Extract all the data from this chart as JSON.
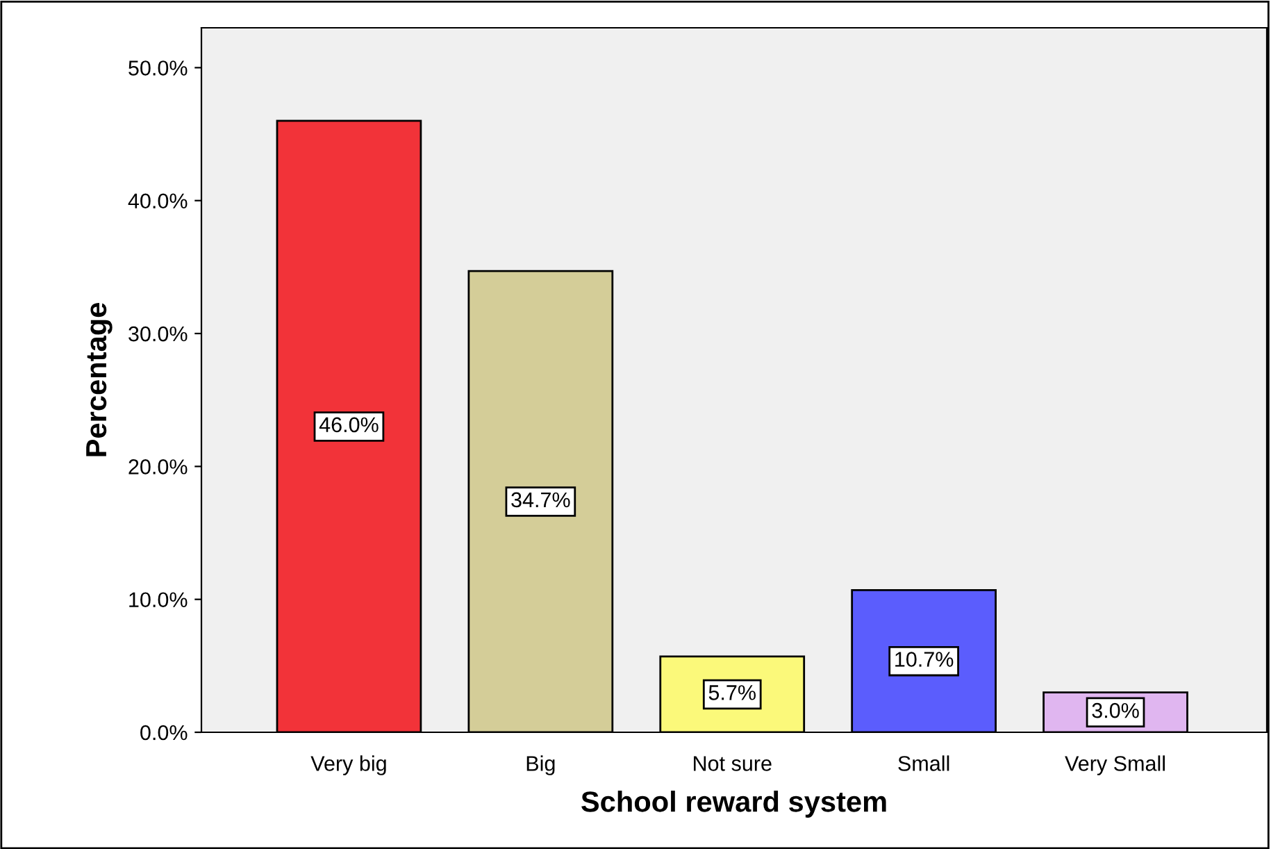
{
  "chart_data": {
    "type": "bar",
    "xlabel": "School reward system",
    "ylabel": "Percentage",
    "categories": [
      "Very big",
      "Big",
      "Not sure",
      "Small",
      "Very Small"
    ],
    "values": [
      46.0,
      34.7,
      5.7,
      10.7,
      3.0
    ],
    "colors": [
      "#f23339",
      "#d4cd98",
      "#fbf97a",
      "#5b5dfd",
      "#e0b6f0"
    ],
    "value_labels": [
      "46.0%",
      "34.7%",
      "5.7%",
      "10.7%",
      "3.0%"
    ],
    "ylim": [
      0,
      53
    ],
    "yticks": [
      {
        "value": 0,
        "label": "0.0%"
      },
      {
        "value": 10,
        "label": "10.0%"
      },
      {
        "value": 20,
        "label": "20.0%"
      },
      {
        "value": 30,
        "label": "30.0%"
      },
      {
        "value": 40,
        "label": "40.0%"
      },
      {
        "value": 50,
        "label": "50.0%"
      }
    ],
    "grid": false
  }
}
